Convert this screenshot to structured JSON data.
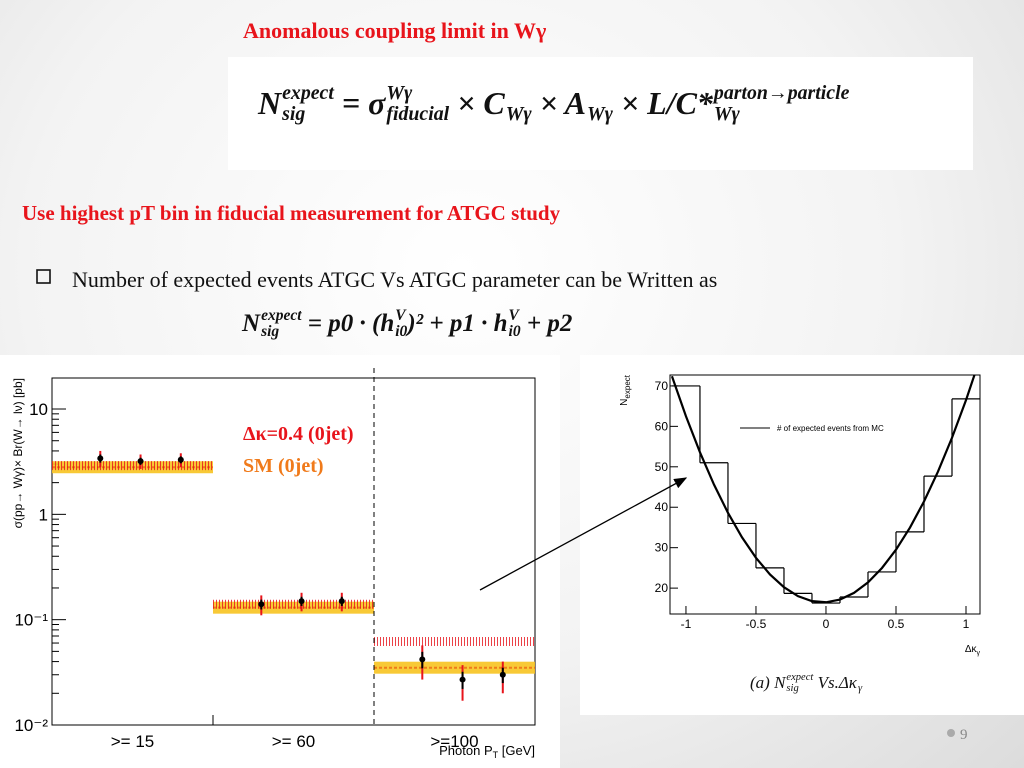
{
  "title": "Anomalous coupling limit in Wγ",
  "formula": [
    {
      "text": "N",
      "sup": "expect",
      "sub": "sig"
    },
    {
      "text": " = σ",
      "sup": "Wγ",
      "sub": "fiducial"
    },
    {
      "text": " × C",
      "sub": "Wγ"
    },
    {
      "text": " × A",
      "sub": "Wγ"
    },
    {
      "text": " × L/C*",
      "sup": "parton→particle",
      "sub": "Wγ"
    }
  ],
  "subtitle": "Use highest pT bin in fiducial measurement for ATGC study",
  "bullet": "Number of expected events ATGC Vs ATGC parameter can be Written as",
  "formula2": [
    {
      "text": "N",
      "sup": "expect",
      "sub": "sig"
    },
    {
      "text": " = p0 · (h",
      "sup": "V",
      "sub": "i0"
    },
    {
      "text": ")² + p1 · h",
      "sup": "V",
      "sub": "i0"
    },
    {
      "text": " + p2"
    }
  ],
  "left_plot": {
    "type": "bar",
    "y_label": "σ(pp→ Wγ)× Br(W→ lν) [pb]",
    "x_label": {
      "text": "Photon P",
      "sub": "T",
      "tail": " [GeV]"
    },
    "categories": [
      ">= 15",
      ">= 60",
      ">=100"
    ],
    "log_y": true,
    "ylim": [
      0.01,
      19.7
    ],
    "yticks": [
      {
        "value": 0.01,
        "label": "10⁻²"
      },
      {
        "value": 0.1,
        "label": "10⁻¹"
      },
      1,
      10
    ],
    "series": [
      {
        "name": "SM (0jet)",
        "color": "#f07a1a",
        "values": [
          2.8,
          0.13,
          0.035
        ]
      },
      {
        "name": "Δκ=0.4 (0jet)",
        "color": "#e8141b",
        "values": [
          2.9,
          0.14,
          0.062
        ]
      }
    ],
    "data_points": [
      [
        3.4,
        3.2,
        3.3
      ],
      [
        0.14,
        0.15,
        0.15
      ],
      [
        0.042,
        0.027,
        0.03
      ]
    ],
    "data_errors": [
      [
        0.6,
        0.5,
        0.5
      ],
      [
        0.03,
        0.03,
        0.03
      ],
      [
        0.015,
        0.01,
        0.01
      ]
    ]
  },
  "right_plot": {
    "type": "histogram",
    "y_label": {
      "text": "N",
      "sub": "expect"
    },
    "x_label": {
      "text": "Δκ",
      "sub": "γ"
    },
    "xlim": [
      -1.114,
      1.1
    ],
    "ylim": [
      13.6,
      72.7
    ],
    "xticks": [
      -1,
      -0.5,
      0,
      0.5,
      1
    ],
    "yticks": [
      20,
      30,
      40,
      50,
      60,
      70
    ],
    "bins": [
      -1.1,
      -0.9,
      -0.7,
      -0.5,
      -0.3,
      -0.1,
      0.1,
      0.3,
      0.5,
      0.7,
      0.9,
      1.1
    ],
    "counts": [
      70,
      51,
      36,
      25,
      18.7,
      16.3,
      17.8,
      24,
      33.9,
      47.7,
      66.8
    ],
    "fit": {
      "name": "# of expected events from MC",
      "x": [
        -1.1,
        -1.0,
        -0.9,
        -0.8,
        -0.7,
        -0.6,
        -0.5,
        -0.4,
        -0.3,
        -0.2,
        -0.1,
        0,
        0.1,
        0.2,
        0.3,
        0.4,
        0.5,
        0.6,
        0.7,
        0.8,
        0.9,
        1.0,
        1.1
      ],
      "values": [
        72.38,
        62.5,
        53.58,
        45.62,
        38.62,
        32.58,
        27.5,
        23.38,
        20.22,
        18.02,
        16.78,
        16.5,
        17.18,
        18.82,
        21.42,
        24.98,
        29.5,
        34.98,
        41.42,
        48.82,
        57.18,
        66.5,
        76.78
      ]
    },
    "caption": [
      {
        "text": "(a) N",
        "sup": "expect",
        "sub": "sig"
      },
      {
        "text": " Vs.Δκ",
        "sub": "γ"
      }
    ]
  },
  "page_number": "9"
}
